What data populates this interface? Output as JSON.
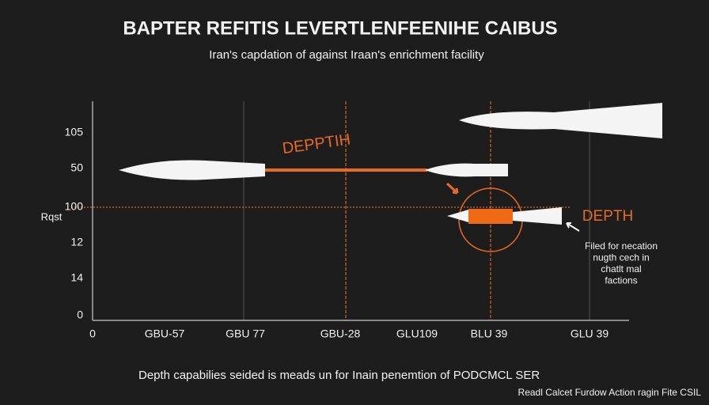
{
  "header": {
    "title": "BAPTER REFITIS LEVERTLENFEENIHE CAIBUS",
    "subtitle": "Iran's capdation of against Iraan's enrichment facility"
  },
  "axes": {
    "y_label": "Rqst",
    "y_labels": [
      "105",
      "50",
      "100",
      "12",
      "14",
      "0"
    ],
    "x_labels": [
      "0",
      "GBU-57",
      "GBU 77",
      "GBU-28",
      "GLU109",
      "BLU 39",
      "GLU 39"
    ]
  },
  "annotations": {
    "depth_left": "DEPPTIH",
    "depth_right": "DEPTH",
    "note_lines": [
      "Filed for necation",
      "nugth cech in",
      "chatlt mal",
      "factions"
    ]
  },
  "footer": {
    "caption": "Depth capabilies seided is meads un for Inain penemtion of PODCMCL SER",
    "source": "Readl Calcet Furdow Action ragin Fite CSIL"
  }
}
